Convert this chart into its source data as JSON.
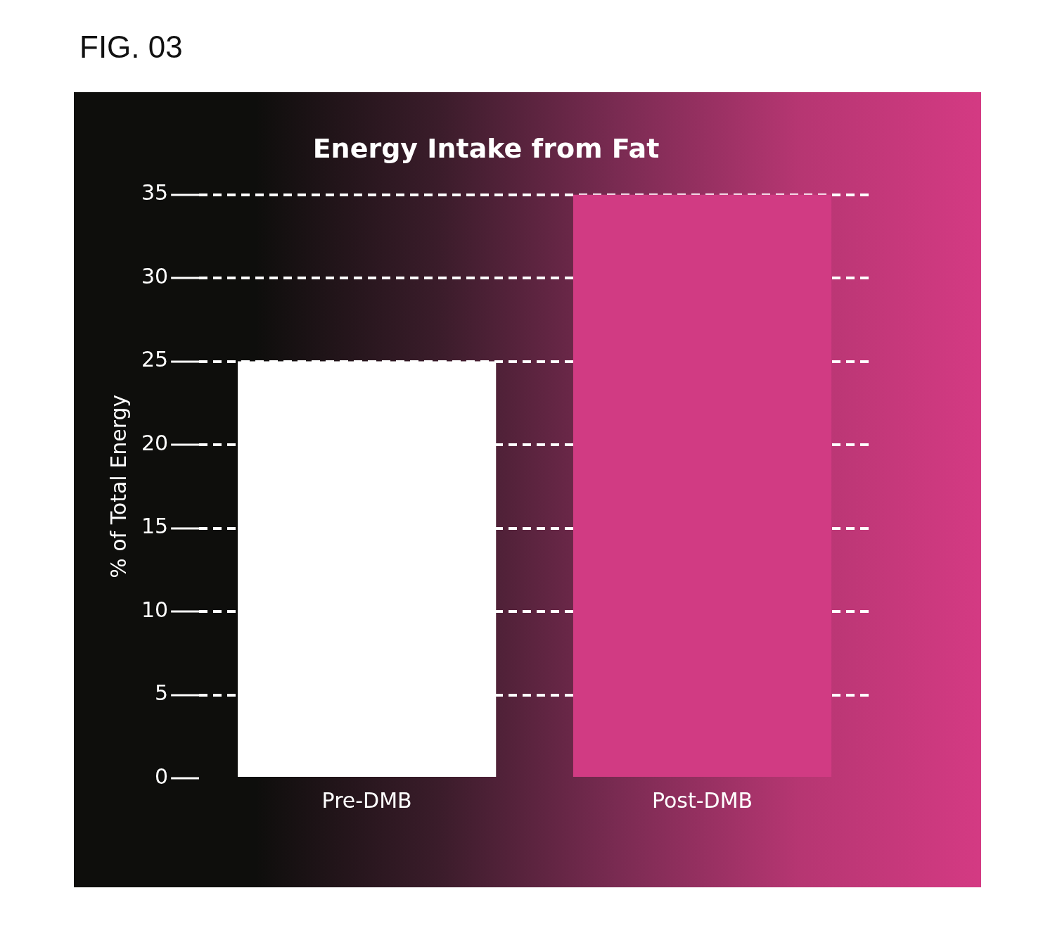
{
  "chart_data": {
    "type": "bar",
    "title": "Energy Intake from Fat",
    "ylabel": "% of Total Energy",
    "annotations": [
      "FIG. 03"
    ],
    "categories": [
      "Pre-DMB",
      "Post-DMB"
    ],
    "values": [
      25,
      35
    ],
    "colors": [
      "#ffffff",
      "#d13b83"
    ],
    "ylim": [
      0,
      35
    ],
    "yticks": [
      0,
      5,
      10,
      15,
      20,
      25,
      30,
      35
    ],
    "grid": "y",
    "legend": false
  }
}
